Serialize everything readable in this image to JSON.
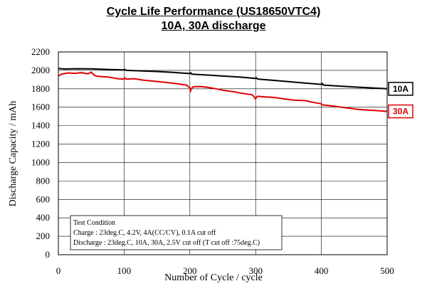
{
  "chart_data": {
    "type": "line",
    "title": "Cycle Life Performance (US18650VTC4)",
    "subtitle": "10A, 30A discharge",
    "xlabel": "Number of Cycle / cycle",
    "ylabel": "Discharge Capacity / mAh",
    "xlim": [
      0,
      500
    ],
    "ylim": [
      0,
      2200
    ],
    "xticks": [
      "0",
      "100",
      "200",
      "300",
      "400",
      "500"
    ],
    "yticks": [
      "0",
      "200",
      "400",
      "600",
      "800",
      "1000",
      "1200",
      "1400",
      "1600",
      "1800",
      "2000",
      "2200"
    ],
    "grid": true,
    "legend": "right",
    "series": [
      {
        "name": "10A",
        "color": "#000000",
        "x": [
          0,
          10,
          25,
          50,
          75,
          100,
          101,
          103,
          125,
          150,
          175,
          200,
          201,
          203,
          225,
          250,
          275,
          300,
          301,
          303,
          325,
          350,
          375,
          400,
          401,
          403,
          425,
          450,
          475,
          500
        ],
        "values": [
          2020,
          2015,
          2018,
          2016,
          2010,
          2005,
          2012,
          2000,
          1995,
          1988,
          1978,
          1965,
          1975,
          1958,
          1950,
          1938,
          1928,
          1912,
          1920,
          1906,
          1893,
          1878,
          1862,
          1848,
          1860,
          1840,
          1830,
          1820,
          1810,
          1800
        ]
      },
      {
        "name": "30A",
        "color": "#e00000",
        "x": [
          0,
          5,
          15,
          25,
          35,
          45,
          50,
          55,
          60,
          75,
          90,
          100,
          101,
          103,
          115,
          130,
          150,
          175,
          195,
          200,
          201,
          202,
          205,
          215,
          225,
          240,
          250,
          265,
          280,
          295,
          300,
          301,
          303,
          315,
          330,
          345,
          360,
          375,
          390,
          400,
          401,
          410,
          425,
          440,
          455,
          470,
          485,
          500
        ],
        "values": [
          1940,
          1960,
          1972,
          1968,
          1975,
          1962,
          1980,
          1945,
          1935,
          1928,
          1910,
          1905,
          1920,
          1905,
          1910,
          1893,
          1880,
          1860,
          1840,
          1810,
          1770,
          1800,
          1822,
          1826,
          1818,
          1800,
          1785,
          1770,
          1750,
          1735,
          1690,
          1705,
          1718,
          1712,
          1705,
          1688,
          1676,
          1672,
          1650,
          1638,
          1625,
          1620,
          1606,
          1592,
          1578,
          1570,
          1563,
          1555
        ]
      }
    ],
    "annotation": {
      "heading": "Test Condition",
      "line1": "Charge : 23deg.C, 4.2V, 4A(CC/CV), 0.1A cut off",
      "line2": "Discharge : 23deg.C, 10A, 30A, 2.5V cut off (T cut off :75deg.C)"
    }
  }
}
